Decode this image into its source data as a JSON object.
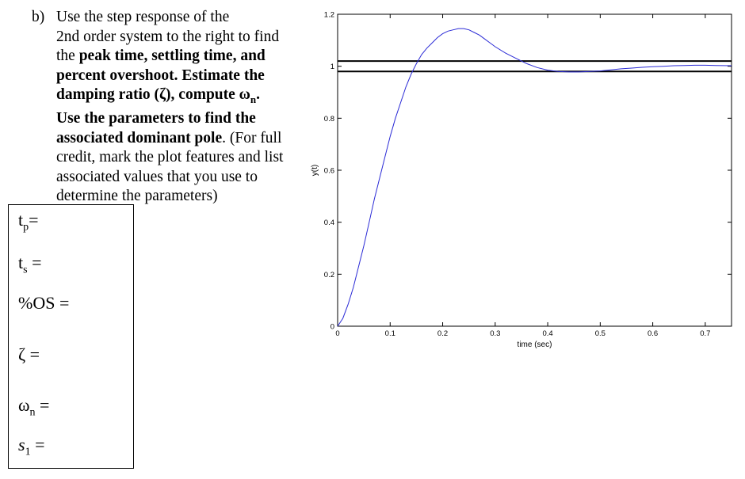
{
  "question": {
    "number": "b)",
    "lines": [
      [
        {
          "t": "Use the step response of the",
          "b": false
        }
      ],
      [
        {
          "t": "2nd order system to the right to find",
          "b": false
        }
      ],
      [
        {
          "t": "the ",
          "b": false
        },
        {
          "t": "peak time, settling time, and",
          "b": true
        }
      ],
      [
        {
          "t": "percent overshoot. Estimate the",
          "b": true
        }
      ],
      [
        {
          "t": "damping ratio (ζ), compute ω",
          "b": true
        },
        {
          "t": "n",
          "b": true,
          "sub": true
        },
        {
          "t": ".",
          "b": true
        }
      ],
      [
        {
          "t": "Use the parameters to find the",
          "b": true
        }
      ],
      [
        {
          "t": "associated dominant pole",
          "b": true
        },
        {
          "t": ". (For full",
          "b": false
        }
      ],
      [
        {
          "t": "credit, mark the plot features and list",
          "b": false
        }
      ],
      [
        {
          "t": "associated values that you use to",
          "b": false
        }
      ],
      [
        {
          "t": "determine the parameters)",
          "b": false
        }
      ]
    ]
  },
  "answers": {
    "tp": {
      "base": "t",
      "sub": "p",
      "suffix": "="
    },
    "ts": {
      "base": "t",
      "sub": "s",
      "suffix": " ="
    },
    "os": {
      "label": "%OS ="
    },
    "zeta": {
      "label": "ζ ="
    },
    "wn": {
      "base": "ω",
      "sub": "n",
      "suffix": " ="
    },
    "s1": {
      "base": "s",
      "sub": "1",
      "suffix": " ="
    }
  },
  "chart_data": {
    "type": "line",
    "xlabel": "time (sec)",
    "ylabel": "y(t)",
    "xlim": [
      0,
      0.75
    ],
    "ylim": [
      0,
      1.2
    ],
    "xticks": [
      0,
      0.1,
      0.2,
      0.3,
      0.4,
      0.5,
      0.6,
      0.7
    ],
    "xtick_labels": [
      "0",
      "0.1",
      "0.2",
      "0.3",
      "0.4",
      "0.5",
      "0.6",
      "0.7"
    ],
    "yticks": [
      0,
      0.2,
      0.4,
      0.6,
      0.8,
      1,
      1.2
    ],
    "ytick_labels": [
      "0",
      "0.2",
      "0.4",
      "0.6",
      "0.8",
      "1",
      "1.2"
    ],
    "series": [
      {
        "color": "#2b2bd6",
        "x": [
          0,
          0.01,
          0.02,
          0.03,
          0.04,
          0.05,
          0.06,
          0.07,
          0.08,
          0.09,
          0.1,
          0.11,
          0.12,
          0.13,
          0.14,
          0.15,
          0.16,
          0.17,
          0.18,
          0.19,
          0.2,
          0.21,
          0.22,
          0.23,
          0.24,
          0.25,
          0.26,
          0.27,
          0.28,
          0.29,
          0.3,
          0.32,
          0.34,
          0.36,
          0.38,
          0.4,
          0.42,
          0.44,
          0.46,
          0.48,
          0.5,
          0.52,
          0.54,
          0.56,
          0.58,
          0.6,
          0.62,
          0.64,
          0.66,
          0.68,
          0.7,
          0.72,
          0.75
        ],
        "y": [
          0,
          0.03,
          0.085,
          0.15,
          0.23,
          0.31,
          0.4,
          0.49,
          0.57,
          0.65,
          0.73,
          0.8,
          0.86,
          0.92,
          0.97,
          1.01,
          1.045,
          1.07,
          1.09,
          1.11,
          1.125,
          1.135,
          1.14,
          1.145,
          1.145,
          1.14,
          1.13,
          1.12,
          1.105,
          1.09,
          1.075,
          1.05,
          1.03,
          1.01,
          0.995,
          0.985,
          0.98,
          0.978,
          0.978,
          0.98,
          0.982,
          0.986,
          0.99,
          0.993,
          0.996,
          0.998,
          1.0,
          1.002,
          1.003,
          1.004,
          1.004,
          1.003,
          1.002
        ]
      }
    ],
    "hlines": [
      1.02,
      0.98
    ],
    "hline_color": "#000000",
    "grid": false
  }
}
